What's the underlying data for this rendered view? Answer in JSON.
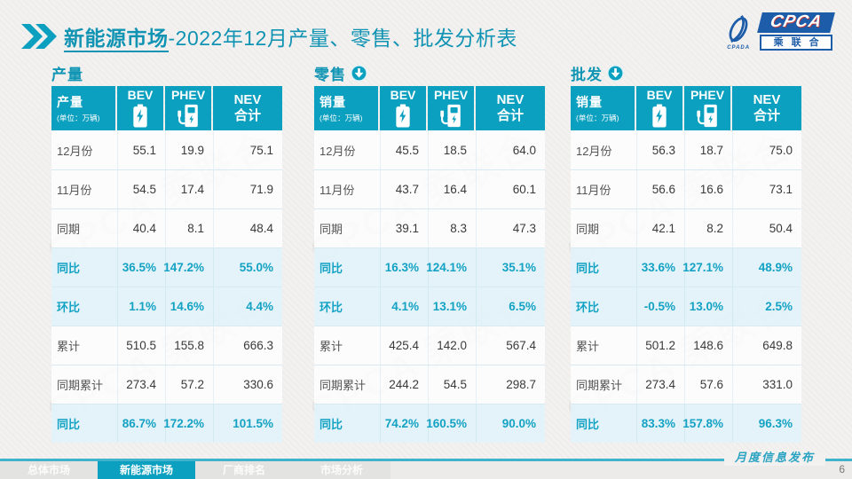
{
  "slide": {
    "title_highlight": "新能源市场",
    "title_rest": "-2022年12月产量、零售、批发分析表",
    "publication_label": "月度信息发布",
    "page_number": "6"
  },
  "logo": {
    "main": "CPCA",
    "sub": "乘联合",
    "mark_caption": "CPADA"
  },
  "watermark_text": "CPCA 乘联合",
  "colors": {
    "accent_teal": "#0BA0BF",
    "title_teal": "#1193B3",
    "highlight_row_bg": "#E2F3FA",
    "highlight_text": "#14A2C4",
    "logo_blue": "#1C5CA8"
  },
  "tables": [
    {
      "section_title": "产量",
      "has_arrow": false,
      "corner_label": "产量",
      "corner_unit": "(单位：万辆)",
      "columns": [
        "BEV",
        "PHEV",
        "NEV\n合计"
      ],
      "column_icons": [
        "battery-icon",
        "charger-icon",
        null
      ],
      "rows": [
        {
          "label": "12月份",
          "values": [
            "55.1",
            "19.9",
            "75.1"
          ],
          "highlight": false
        },
        {
          "label": "11月份",
          "values": [
            "54.5",
            "17.4",
            "71.9"
          ],
          "highlight": false
        },
        {
          "label": "同期",
          "values": [
            "40.4",
            "8.1",
            "48.4"
          ],
          "highlight": false
        },
        {
          "label": "同比",
          "values": [
            "36.5%",
            "147.2%",
            "55.0%"
          ],
          "highlight": true
        },
        {
          "label": "环比",
          "values": [
            "1.1%",
            "14.6%",
            "4.4%"
          ],
          "highlight": true
        },
        {
          "label": "累计",
          "values": [
            "510.5",
            "155.8",
            "666.3"
          ],
          "highlight": false
        },
        {
          "label": "同期累计",
          "values": [
            "273.4",
            "57.2",
            "330.6"
          ],
          "highlight": false
        },
        {
          "label": "同比",
          "values": [
            "86.7%",
            "172.2%",
            "101.5%"
          ],
          "highlight": true
        }
      ]
    },
    {
      "section_title": "零售",
      "has_arrow": true,
      "corner_label": "销量",
      "corner_unit": "(单位：万辆)",
      "columns": [
        "BEV",
        "PHEV",
        "NEV\n合计"
      ],
      "column_icons": [
        "battery-icon",
        "charger-icon",
        null
      ],
      "rows": [
        {
          "label": "12月份",
          "values": [
            "45.5",
            "18.5",
            "64.0"
          ],
          "highlight": false
        },
        {
          "label": "11月份",
          "values": [
            "43.7",
            "16.4",
            "60.1"
          ],
          "highlight": false
        },
        {
          "label": "同期",
          "values": [
            "39.1",
            "8.3",
            "47.3"
          ],
          "highlight": false
        },
        {
          "label": "同比",
          "values": [
            "16.3%",
            "124.1%",
            "35.1%"
          ],
          "highlight": true
        },
        {
          "label": "环比",
          "values": [
            "4.1%",
            "13.1%",
            "6.5%"
          ],
          "highlight": true
        },
        {
          "label": "累计",
          "values": [
            "425.4",
            "142.0",
            "567.4"
          ],
          "highlight": false
        },
        {
          "label": "同期累计",
          "values": [
            "244.2",
            "54.5",
            "298.7"
          ],
          "highlight": false
        },
        {
          "label": "同比",
          "values": [
            "74.2%",
            "160.5%",
            "90.0%"
          ],
          "highlight": true
        }
      ]
    },
    {
      "section_title": "批发",
      "has_arrow": true,
      "corner_label": "销量",
      "corner_unit": "(单位：万辆)",
      "columns": [
        "BEV",
        "PHEV",
        "NEV\n合计"
      ],
      "column_icons": [
        "battery-icon",
        "charger-icon",
        null
      ],
      "rows": [
        {
          "label": "12月份",
          "values": [
            "56.3",
            "18.7",
            "75.0"
          ],
          "highlight": false
        },
        {
          "label": "11月份",
          "values": [
            "56.6",
            "16.6",
            "73.1"
          ],
          "highlight": false
        },
        {
          "label": "同期",
          "values": [
            "42.1",
            "8.2",
            "50.4"
          ],
          "highlight": false
        },
        {
          "label": "同比",
          "values": [
            "33.6%",
            "127.1%",
            "48.9%"
          ],
          "highlight": true
        },
        {
          "label": "环比",
          "values": [
            "-0.5%",
            "13.0%",
            "2.5%"
          ],
          "highlight": true
        },
        {
          "label": "累计",
          "values": [
            "501.2",
            "148.6",
            "649.8"
          ],
          "highlight": false
        },
        {
          "label": "同期累计",
          "values": [
            "273.4",
            "57.6",
            "331.0"
          ],
          "highlight": false
        },
        {
          "label": "同比",
          "values": [
            "83.3%",
            "157.8%",
            "96.3%"
          ],
          "highlight": true
        }
      ]
    }
  ],
  "nav": {
    "items": [
      {
        "label": "总体市场",
        "active": false
      },
      {
        "label": "新能源市场",
        "active": true
      },
      {
        "label": "厂商排名",
        "active": false
      },
      {
        "label": "市场分析",
        "active": false
      }
    ]
  }
}
